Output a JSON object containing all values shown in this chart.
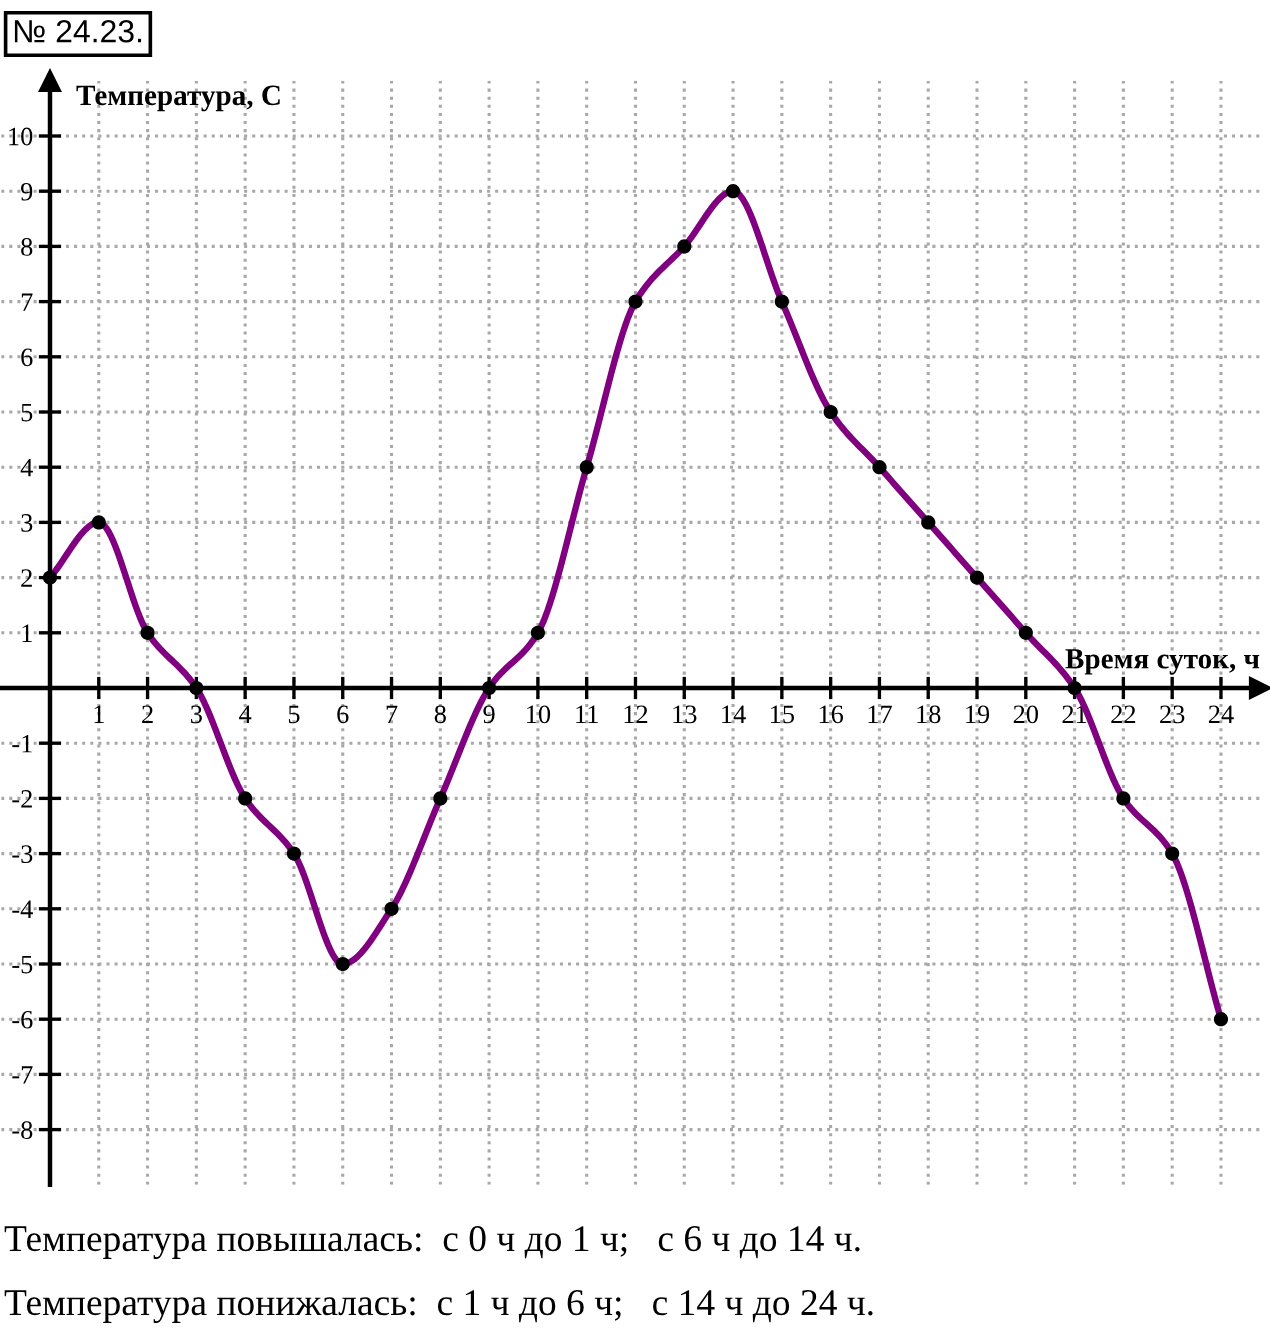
{
  "chart_data": {
    "type": "line",
    "title": "№ 24.23.",
    "xlabel": "Время суток, ч",
    "ylabel": "Температура, С",
    "x": [
      0,
      1,
      2,
      3,
      4,
      5,
      6,
      7,
      8,
      9,
      10,
      11,
      12,
      13,
      14,
      15,
      16,
      17,
      18,
      19,
      20,
      21,
      22,
      23,
      24
    ],
    "series": [
      {
        "color": "#800080",
        "colors": [
          "#000000",
          "#000000",
          "#000000",
          "#000000",
          "#000000",
          "#000000",
          "#000000",
          "#000000",
          "#000000",
          "#000000",
          "#000000",
          "#000000",
          "#000000",
          "#000000",
          "#000000",
          "#000000",
          "#000000",
          "#000000",
          "#000000",
          "#000000",
          "#000000",
          "#000000",
          "#000000",
          "#000000",
          "#000000"
        ],
        "values": [
          2,
          3,
          1,
          0,
          -2,
          -3,
          -5,
          -4,
          -2,
          0,
          1,
          4,
          7,
          8,
          9,
          7,
          5,
          4,
          3,
          2,
          1,
          0,
          -2,
          -3,
          -6
        ]
      }
    ],
    "xlim": [
      -1,
      24.8
    ],
    "ylim": [
      -9,
      11
    ],
    "xticks": [
      1,
      2,
      3,
      4,
      5,
      6,
      7,
      8,
      9,
      10,
      11,
      12,
      13,
      14,
      15,
      16,
      17,
      18,
      19,
      20,
      21,
      22,
      23,
      24
    ],
    "yticks": [
      -8,
      -7,
      -6,
      -5,
      -4,
      -3,
      -2,
      -1,
      1,
      2,
      3,
      4,
      5,
      6,
      7,
      8,
      9,
      10
    ],
    "grid": true,
    "marker": "circle",
    "line_style": "solid",
    "annotations": [
      "Температура повышалась:  с 0 ч до 1 ч;   с 6 ч до 14 ч.",
      "Температура понижалась:  с 1 ч до 6 ч;   с 14 ч до 24 ч."
    ]
  }
}
